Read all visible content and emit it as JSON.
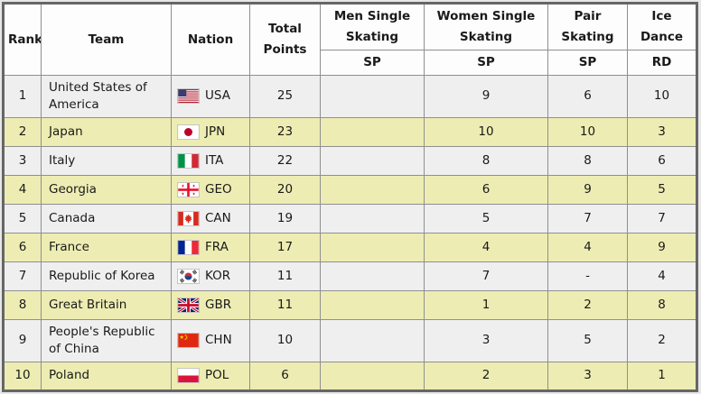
{
  "colors": {
    "row_highlight": "#ededb3",
    "row_default": "#efefef",
    "header_bg": "#fdfdfd",
    "border_outer": "#666666",
    "border_inner": "#8f8f8f",
    "text": "#1a1a1a",
    "page_bg": "#e7e7e7"
  },
  "table": {
    "columns": {
      "rank": "Rank",
      "team": "Team",
      "nation": "Nation",
      "total": "Total Points",
      "groups": [
        {
          "label": "Men Single Skating",
          "sub": "SP"
        },
        {
          "label": "Women Single Skating",
          "sub": "SP"
        },
        {
          "label": "Pair Skating",
          "sub": "SP"
        },
        {
          "label": "Ice Dance",
          "sub": "RD"
        }
      ]
    },
    "rows": [
      {
        "rank": "1",
        "team": "United States of America",
        "nation": "USA",
        "flag_icon": "usa-flag-icon",
        "total": "25",
        "men_sp": "",
        "women_sp": "9",
        "pair_sp": "6",
        "ice_rd": "10"
      },
      {
        "rank": "2",
        "team": "Japan",
        "nation": "JPN",
        "flag_icon": "japan-flag-icon",
        "total": "23",
        "men_sp": "",
        "women_sp": "10",
        "pair_sp": "10",
        "ice_rd": "3"
      },
      {
        "rank": "3",
        "team": "Italy",
        "nation": "ITA",
        "flag_icon": "italy-flag-icon",
        "total": "22",
        "men_sp": "",
        "women_sp": "8",
        "pair_sp": "8",
        "ice_rd": "6"
      },
      {
        "rank": "4",
        "team": "Georgia",
        "nation": "GEO",
        "flag_icon": "georgia-flag-icon",
        "total": "20",
        "men_sp": "",
        "women_sp": "6",
        "pair_sp": "9",
        "ice_rd": "5"
      },
      {
        "rank": "5",
        "team": "Canada",
        "nation": "CAN",
        "flag_icon": "canada-flag-icon",
        "total": "19",
        "men_sp": "",
        "women_sp": "5",
        "pair_sp": "7",
        "ice_rd": "7"
      },
      {
        "rank": "6",
        "team": "France",
        "nation": "FRA",
        "flag_icon": "france-flag-icon",
        "total": "17",
        "men_sp": "",
        "women_sp": "4",
        "pair_sp": "4",
        "ice_rd": "9"
      },
      {
        "rank": "7",
        "team": "Republic of Korea",
        "nation": "KOR",
        "flag_icon": "south-korea-flag-icon",
        "total": "11",
        "men_sp": "",
        "women_sp": "7",
        "pair_sp": "-",
        "ice_rd": "4"
      },
      {
        "rank": "8",
        "team": "Great Britain",
        "nation": "GBR",
        "flag_icon": "great-britain-flag-icon",
        "total": "11",
        "men_sp": "",
        "women_sp": "1",
        "pair_sp": "2",
        "ice_rd": "8"
      },
      {
        "rank": "9",
        "team": "People's Republic of China",
        "nation": "CHN",
        "flag_icon": "china-flag-icon",
        "total": "10",
        "men_sp": "",
        "women_sp": "3",
        "pair_sp": "5",
        "ice_rd": "2"
      },
      {
        "rank": "10",
        "team": "Poland",
        "nation": "POL",
        "flag_icon": "poland-flag-icon",
        "total": "6",
        "men_sp": "",
        "women_sp": "2",
        "pair_sp": "3",
        "ice_rd": "1"
      }
    ]
  }
}
